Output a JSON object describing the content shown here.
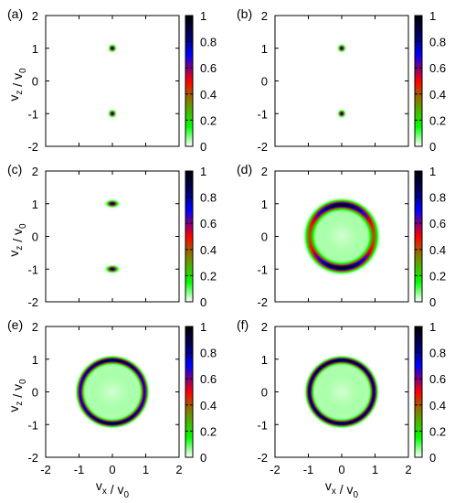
{
  "chart_data": [
    {
      "type": "heatmap",
      "panel_label": "(a)",
      "pattern": "two_spots",
      "spot_x": 0,
      "spot_z": [
        1,
        -1
      ],
      "spot_sigma_x": 0.045,
      "spot_sigma_z": 0.045,
      "ring_radius": null,
      "ring_sigma": null,
      "ring_modulation": null,
      "clim": [
        0,
        1
      ],
      "xlim": [
        -2,
        2
      ],
      "ylim": [
        -2,
        2
      ],
      "xticks": [
        "-2",
        "-1",
        "0",
        "1",
        "2"
      ],
      "yticks": [
        "-2",
        "-1",
        "0",
        "1",
        "2"
      ],
      "colorbar_ticks": [
        "0",
        "0.2",
        "0.4",
        "0.6",
        "0.8",
        "1"
      ],
      "xlabel": "",
      "ylabel": "v_z / v_0"
    },
    {
      "type": "heatmap",
      "panel_label": "(b)",
      "pattern": "two_spots",
      "spot_x": 0,
      "spot_z": [
        1,
        -1
      ],
      "spot_sigma_x": 0.045,
      "spot_sigma_z": 0.045,
      "ring_radius": null,
      "ring_sigma": null,
      "ring_modulation": null,
      "clim": [
        0,
        1
      ],
      "xlim": [
        -2,
        2
      ],
      "ylim": [
        -2,
        2
      ],
      "xticks": [
        "-2",
        "-1",
        "0",
        "1",
        "2"
      ],
      "yticks": [
        "-2",
        "-1",
        "0",
        "1",
        "2"
      ],
      "colorbar_ticks": [
        "0",
        "0.2",
        "0.4",
        "0.6",
        "0.8",
        "1"
      ],
      "xlabel": "",
      "ylabel": ""
    },
    {
      "type": "heatmap",
      "panel_label": "(c)",
      "pattern": "two_spots",
      "spot_x": 0,
      "spot_z": [
        1,
        -1
      ],
      "spot_sigma_x": 0.08,
      "spot_sigma_z": 0.045,
      "ring_radius": null,
      "ring_sigma": null,
      "ring_modulation": null,
      "clim": [
        0,
        1
      ],
      "xlim": [
        -2,
        2
      ],
      "ylim": [
        -2,
        2
      ],
      "xticks": [
        "-2",
        "-1",
        "0",
        "1",
        "2"
      ],
      "yticks": [
        "-2",
        "-1",
        "0",
        "1",
        "2"
      ],
      "colorbar_ticks": [
        "0",
        "0.2",
        "0.4",
        "0.6",
        "0.8",
        "1"
      ],
      "xlabel": "",
      "ylabel": "v_z / v_0"
    },
    {
      "type": "heatmap",
      "panel_label": "(d)",
      "pattern": "ring",
      "spot_x": null,
      "spot_z": null,
      "spot_sigma_x": null,
      "spot_sigma_z": null,
      "ring_radius": 0.97,
      "ring_sigma": 0.07,
      "ring_modulation": 0.6,
      "clim": [
        0,
        1
      ],
      "xlim": [
        -2,
        2
      ],
      "ylim": [
        -2,
        2
      ],
      "xticks": [
        "-2",
        "-1",
        "0",
        "1",
        "2"
      ],
      "yticks": [
        "-2",
        "-1",
        "0",
        "1",
        "2"
      ],
      "colorbar_ticks": [
        "0",
        "0.2",
        "0.4",
        "0.6",
        "0.8",
        "1"
      ],
      "xlabel": "",
      "ylabel": ""
    },
    {
      "type": "heatmap",
      "panel_label": "(e)",
      "pattern": "ring",
      "spot_x": null,
      "spot_z": null,
      "spot_sigma_x": null,
      "spot_sigma_z": null,
      "ring_radius": 0.97,
      "ring_sigma": 0.05,
      "ring_modulation": 0.25,
      "clim": [
        0,
        1
      ],
      "xlim": [
        -2,
        2
      ],
      "ylim": [
        -2,
        2
      ],
      "xticks": [
        "-2",
        "-1",
        "0",
        "1",
        "2"
      ],
      "yticks": [
        "-2",
        "-1",
        "0",
        "1",
        "2"
      ],
      "colorbar_ticks": [
        "0",
        "0.2",
        "0.4",
        "0.6",
        "0.8",
        "1"
      ],
      "xlabel": "v_x / v_0",
      "ylabel": "v_z / v_0"
    },
    {
      "type": "heatmap",
      "panel_label": "(f)",
      "pattern": "ring",
      "spot_x": null,
      "spot_z": null,
      "spot_sigma_x": null,
      "spot_sigma_z": null,
      "ring_radius": 0.97,
      "ring_sigma": 0.05,
      "ring_modulation": 0.1,
      "clim": [
        0,
        1
      ],
      "xlim": [
        -2,
        2
      ],
      "ylim": [
        -2,
        2
      ],
      "xticks": [
        "-2",
        "-1",
        "0",
        "1",
        "2"
      ],
      "yticks": [
        "-2",
        "-1",
        "0",
        "1",
        "2"
      ],
      "colorbar_ticks": [
        "0",
        "0.2",
        "0.4",
        "0.6",
        "0.8",
        "1"
      ],
      "xlabel": "v_x / v_0",
      "ylabel": ""
    }
  ],
  "colormap": {
    "stops": [
      0,
      0.15,
      0.35,
      0.5,
      0.7,
      0.85,
      1
    ],
    "colors": [
      "#ffffff",
      "#00ff00",
      "#808000",
      "#ff0000",
      "#0000ff",
      "#000060",
      "#000000"
    ]
  }
}
